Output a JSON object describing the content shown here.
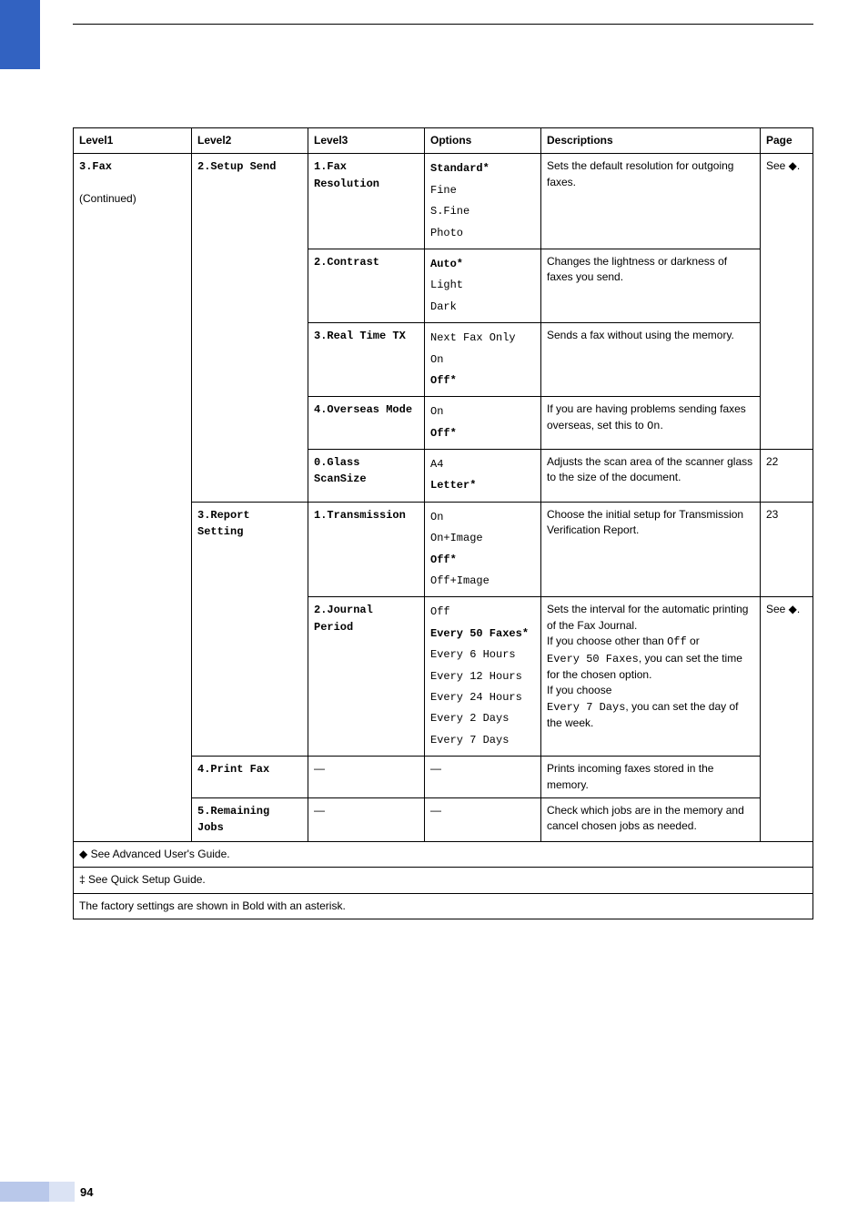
{
  "colors": {
    "side_tab": "#3262c1",
    "pagebar_dark": "#b9c8ea",
    "pagebar_light": "#dbe3f4",
    "border": "#000000",
    "text": "#000000",
    "bg": "#ffffff"
  },
  "page_number": "94",
  "headers": {
    "level1": "Level1",
    "level2": "Level2",
    "level3": "Level3",
    "options": "Options",
    "descriptions": "Descriptions",
    "page": "Page"
  },
  "level1": {
    "code": "3.Fax",
    "cont": "(Continued)"
  },
  "level2": {
    "setup_send": "2.Setup Send",
    "report_setting": "3.Report Setting",
    "print_fax": "4.Print Fax",
    "remaining_jobs": "5.Remaining Jobs"
  },
  "level3": {
    "fax_resolution": "1.Fax Resolution",
    "contrast": "2.Contrast",
    "real_time_tx": "3.Real Time TX",
    "overseas_mode": "4.Overseas Mode",
    "glass_scansize": "0.Glass ScanSize",
    "transmission": "1.Transmission",
    "journal_period": "2.Journal Period"
  },
  "options": {
    "fax_resolution": [
      "Standard*",
      "Fine",
      "S.Fine",
      "Photo"
    ],
    "contrast": [
      "Auto*",
      "Light",
      "Dark"
    ],
    "real_time_tx": [
      "Next Fax Only",
      "On",
      "Off*"
    ],
    "overseas_mode": [
      "On",
      "Off*"
    ],
    "glass_scansize": [
      "A4",
      "Letter*"
    ],
    "transmission": [
      "On",
      "On+Image",
      "Off*",
      "Off+Image"
    ],
    "journal_period": [
      "Off",
      "Every 50 Faxes*",
      "Every 6 Hours",
      "Every 12 Hours",
      "Every 24 Hours",
      "Every 2 Days",
      "Every 7 Days"
    ]
  },
  "desc": {
    "fax_resolution": "Sets the default resolution for outgoing faxes.",
    "contrast": "Changes the lightness or darkness of faxes you send.",
    "real_time_tx": "Sends a fax without using the memory.",
    "glass_scansize": "Adjusts the scan area of the scanner glass to the size of the document.",
    "transmission": "Choose the initial setup for Transmission Verification Report.",
    "print_fax": "Prints incoming faxes stored in the memory.",
    "remaining_jobs": "Check which jobs are in the memory and cancel chosen jobs as needed."
  },
  "desc_overseas": {
    "p1": "If you are having problems sending faxes overseas, set this to ",
    "code": "On",
    "p2": "."
  },
  "desc_journal": {
    "p1": "Sets the interval for the automatic printing of the Fax Journal.",
    "p2a": "If you choose other than ",
    "c1": "Off",
    "p2b": " or ",
    "c2": "Every 50 Faxes",
    "p2c": ", you can set the time for the chosen option.",
    "p3a": "If you choose ",
    "c3": "Every 7 Days",
    "p3b": ", you can set the day of the week."
  },
  "page_refs": {
    "see_diamond": "See ◆.",
    "p22": "22",
    "p23": "23"
  },
  "dash": "—",
  "footnotes": {
    "diamond": "◆ See Advanced User's Guide.",
    "ddagger": "‡ See Quick Setup Guide.",
    "factory": "The factory settings are shown in Bold with an asterisk."
  }
}
